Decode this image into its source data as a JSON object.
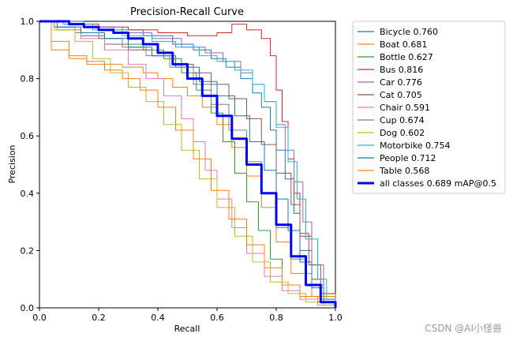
{
  "chart_data": {
    "type": "line",
    "title": "Precision-Recall Curve",
    "xlabel": "Recall",
    "ylabel": "Precision",
    "xlim": [
      0,
      1
    ],
    "ylim": [
      0,
      1
    ],
    "xticks": [
      "0.0",
      "0.2",
      "0.4",
      "0.6",
      "0.8",
      "1.0"
    ],
    "yticks": [
      "0.0",
      "0.2",
      "0.4",
      "0.6",
      "0.8",
      "1.0"
    ],
    "grid": false,
    "legend_position": "outside-right",
    "series": [
      {
        "name": "Bicycle",
        "ap": "0.760",
        "legend_label": "Bicycle 0.760",
        "color": "#1f77b4",
        "x": [
          0,
          0.05,
          0.15,
          0.25,
          0.35,
          0.45,
          0.52,
          0.58,
          0.63,
          0.68,
          0.72,
          0.75,
          0.78,
          0.8,
          0.83,
          0.86,
          0.88,
          0.92,
          0.96,
          1.0
        ],
        "y": [
          1.0,
          1.0,
          0.98,
          0.97,
          0.95,
          0.92,
          0.9,
          0.87,
          0.84,
          0.8,
          0.75,
          0.7,
          0.62,
          0.55,
          0.45,
          0.33,
          0.2,
          0.08,
          0.03,
          0.0
        ]
      },
      {
        "name": "Boat",
        "ap": "0.681",
        "legend_label": "Boat 0.681",
        "color": "#ff7f0e",
        "x": [
          0,
          0.04,
          0.1,
          0.16,
          0.22,
          0.28,
          0.35,
          0.4,
          0.45,
          0.5,
          0.55,
          0.6,
          0.65,
          0.7,
          0.75,
          0.8,
          0.85,
          0.92,
          1.0
        ],
        "y": [
          1.0,
          0.93,
          0.88,
          0.86,
          0.85,
          0.84,
          0.82,
          0.8,
          0.77,
          0.74,
          0.7,
          0.64,
          0.56,
          0.46,
          0.35,
          0.23,
          0.12,
          0.04,
          0.0
        ]
      },
      {
        "name": "Bottle",
        "ap": "0.627",
        "legend_label": "Bottle 0.627",
        "color": "#2ca02c",
        "x": [
          0,
          0.05,
          0.12,
          0.2,
          0.28,
          0.35,
          0.42,
          0.48,
          0.53,
          0.58,
          0.62,
          0.66,
          0.7,
          0.74,
          0.78,
          0.82,
          0.88,
          0.94,
          1.0
        ],
        "y": [
          1.0,
          0.98,
          0.96,
          0.94,
          0.92,
          0.9,
          0.87,
          0.82,
          0.76,
          0.68,
          0.58,
          0.47,
          0.37,
          0.27,
          0.17,
          0.08,
          0.04,
          0.02,
          0.0
        ]
      },
      {
        "name": "Bus",
        "ap": "0.816",
        "legend_label": "Bus 0.816",
        "color": "#d62728",
        "x": [
          0,
          0.1,
          0.2,
          0.3,
          0.4,
          0.5,
          0.6,
          0.65,
          0.7,
          0.75,
          0.78,
          0.8,
          0.82,
          0.84,
          0.86,
          0.88,
          0.92,
          0.96,
          1.0
        ],
        "y": [
          1.0,
          0.99,
          0.98,
          0.97,
          0.96,
          0.95,
          0.96,
          0.99,
          0.97,
          0.94,
          0.88,
          0.76,
          0.65,
          0.52,
          0.4,
          0.25,
          0.1,
          0.03,
          0.0
        ]
      },
      {
        "name": "Car",
        "ap": "0.776",
        "legend_label": "Car 0.776",
        "color": "#9467bd",
        "x": [
          0,
          0.08,
          0.18,
          0.28,
          0.38,
          0.48,
          0.56,
          0.62,
          0.68,
          0.72,
          0.76,
          0.8,
          0.83,
          0.86,
          0.89,
          0.92,
          0.96,
          1.0
        ],
        "y": [
          1.0,
          0.99,
          0.98,
          0.96,
          0.94,
          0.91,
          0.89,
          0.86,
          0.82,
          0.78,
          0.72,
          0.64,
          0.55,
          0.44,
          0.3,
          0.15,
          0.05,
          0.0
        ]
      },
      {
        "name": "Cat",
        "ap": "0.705",
        "legend_label": "Cat 0.705",
        "color": "#8c564b",
        "x": [
          0,
          0.06,
          0.14,
          0.22,
          0.3,
          0.38,
          0.45,
          0.52,
          0.58,
          0.64,
          0.7,
          0.75,
          0.8,
          0.85,
          0.88,
          0.91,
          0.95,
          1.0
        ],
        "y": [
          1.0,
          0.97,
          0.95,
          0.92,
          0.9,
          0.88,
          0.85,
          0.82,
          0.78,
          0.73,
          0.66,
          0.57,
          0.47,
          0.36,
          0.26,
          0.15,
          0.05,
          0.0
        ]
      },
      {
        "name": "Chair",
        "ap": "0.591",
        "legend_label": "Chair 0.591",
        "color": "#e377c2",
        "x": [
          0,
          0.06,
          0.14,
          0.22,
          0.3,
          0.36,
          0.42,
          0.48,
          0.52,
          0.56,
          0.6,
          0.65,
          0.7,
          0.76,
          0.82,
          0.88,
          0.94,
          1.0
        ],
        "y": [
          1.0,
          0.97,
          0.94,
          0.9,
          0.85,
          0.8,
          0.74,
          0.66,
          0.58,
          0.48,
          0.38,
          0.28,
          0.19,
          0.11,
          0.06,
          0.03,
          0.01,
          0.0
        ]
      },
      {
        "name": "Cup",
        "ap": "0.674",
        "legend_label": "Cup 0.674",
        "color": "#7f7f7f",
        "x": [
          0,
          0.05,
          0.12,
          0.2,
          0.28,
          0.36,
          0.44,
          0.52,
          0.58,
          0.64,
          0.7,
          0.75,
          0.8,
          0.85,
          0.9,
          0.95,
          1.0
        ],
        "y": [
          1.0,
          0.98,
          0.96,
          0.94,
          0.91,
          0.88,
          0.84,
          0.78,
          0.71,
          0.62,
          0.51,
          0.4,
          0.28,
          0.17,
          0.08,
          0.03,
          0.0
        ]
      },
      {
        "name": "Dog",
        "ap": "0.602",
        "legend_label": "Dog 0.602",
        "color": "#bcbd22",
        "x": [
          0,
          0.05,
          0.12,
          0.18,
          0.24,
          0.3,
          0.36,
          0.42,
          0.48,
          0.54,
          0.6,
          0.66,
          0.72,
          0.78,
          0.84,
          0.9,
          0.96,
          1.0
        ],
        "y": [
          1.0,
          0.97,
          0.93,
          0.87,
          0.82,
          0.77,
          0.72,
          0.64,
          0.55,
          0.45,
          0.35,
          0.25,
          0.16,
          0.09,
          0.05,
          0.02,
          0.01,
          0.0
        ]
      },
      {
        "name": "Motorbike",
        "ap": "0.754",
        "legend_label": "Motorbike 0.754",
        "color": "#17becf",
        "x": [
          0,
          0.08,
          0.18,
          0.28,
          0.38,
          0.46,
          0.54,
          0.6,
          0.66,
          0.72,
          0.76,
          0.8,
          0.84,
          0.87,
          0.9,
          0.94,
          0.97,
          1.0
        ],
        "y": [
          1.0,
          0.99,
          0.97,
          0.95,
          0.93,
          0.91,
          0.88,
          0.86,
          0.83,
          0.78,
          0.72,
          0.63,
          0.51,
          0.38,
          0.24,
          0.1,
          0.03,
          0.0
        ]
      },
      {
        "name": "People",
        "ap": "0.712",
        "legend_label": "People 0.712",
        "color": "#1f77b4",
        "x": [
          0,
          0.06,
          0.14,
          0.22,
          0.3,
          0.38,
          0.46,
          0.54,
          0.6,
          0.66,
          0.71,
          0.76,
          0.8,
          0.84,
          0.88,
          0.92,
          0.96,
          1.0
        ],
        "y": [
          1.0,
          0.98,
          0.96,
          0.94,
          0.91,
          0.88,
          0.84,
          0.79,
          0.74,
          0.67,
          0.58,
          0.48,
          0.38,
          0.27,
          0.16,
          0.07,
          0.02,
          0.0
        ]
      },
      {
        "name": "Table",
        "ap": "0.568",
        "legend_label": "Table 0.568",
        "color": "#ff7f0e",
        "x": [
          0,
          0.04,
          0.1,
          0.16,
          0.22,
          0.28,
          0.34,
          0.4,
          0.46,
          0.52,
          0.58,
          0.64,
          0.7,
          0.76,
          0.82,
          0.88,
          0.94,
          1.0
        ],
        "y": [
          1.0,
          0.9,
          0.87,
          0.85,
          0.83,
          0.8,
          0.76,
          0.7,
          0.62,
          0.52,
          0.41,
          0.31,
          0.22,
          0.14,
          0.08,
          0.04,
          0.02,
          0.0
        ]
      },
      {
        "name": "all classes",
        "ap": "0.689",
        "legend_label": "all classes 0.689 mAP@0.5",
        "color": "#0000ff",
        "bold": true,
        "x": [
          0,
          0.05,
          0.1,
          0.15,
          0.2,
          0.25,
          0.3,
          0.35,
          0.4,
          0.45,
          0.5,
          0.55,
          0.6,
          0.65,
          0.7,
          0.75,
          0.8,
          0.85,
          0.9,
          0.95,
          1.0
        ],
        "y": [
          1.0,
          1.0,
          0.99,
          0.98,
          0.97,
          0.96,
          0.94,
          0.92,
          0.89,
          0.85,
          0.8,
          0.74,
          0.67,
          0.59,
          0.5,
          0.4,
          0.29,
          0.18,
          0.08,
          0.02,
          0.0
        ]
      }
    ]
  },
  "watermark": "CSDN @AI小怪兽"
}
